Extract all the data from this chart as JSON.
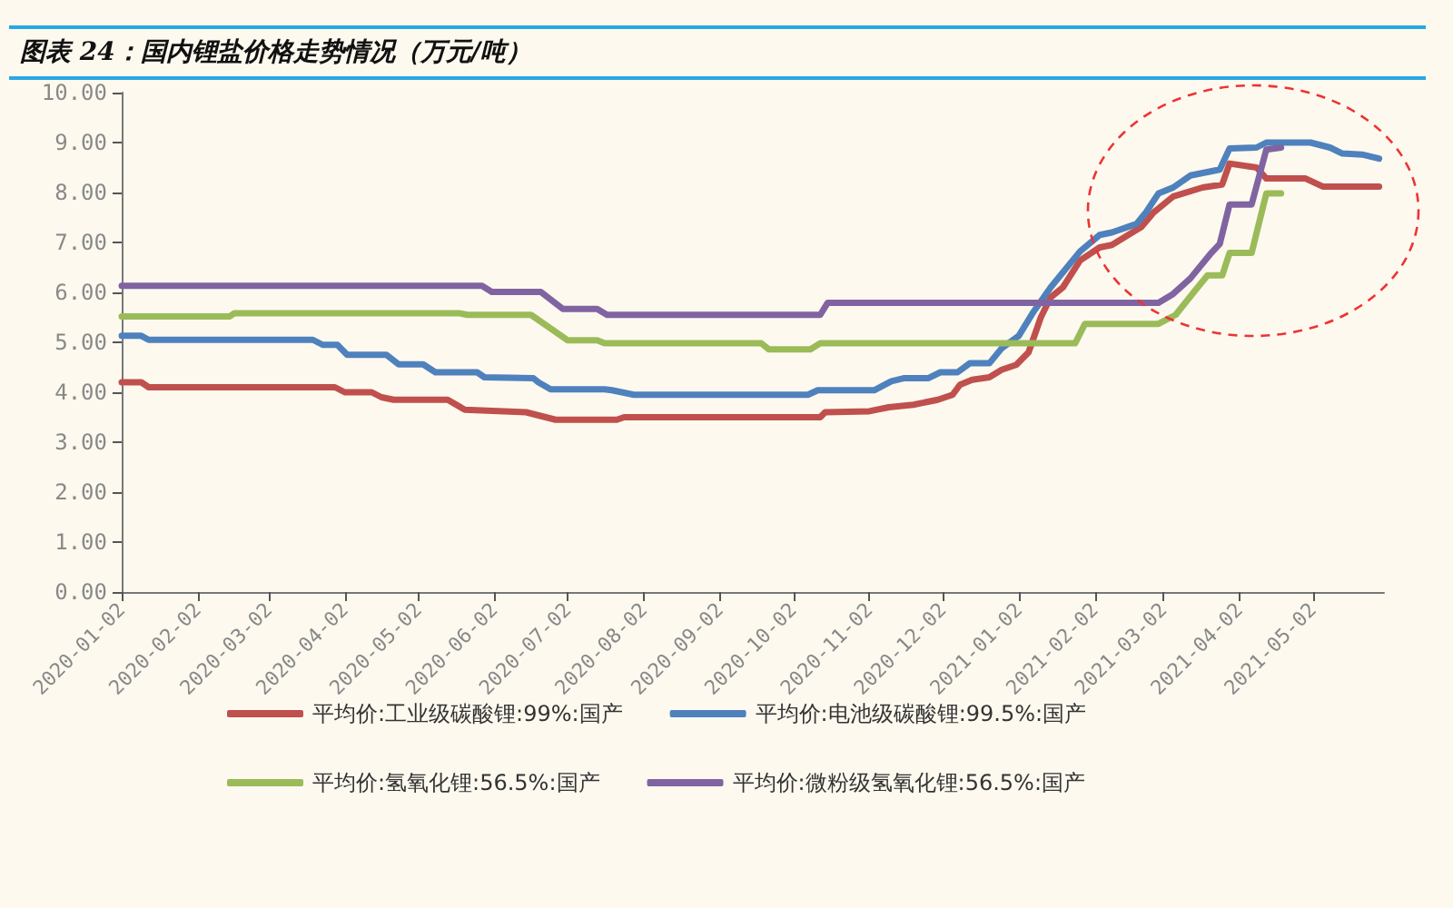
{
  "chart_data": {
    "type": "line",
    "title": "图表 24：国内锂盐价格走势情况（万元/吨）",
    "xlim": [
      "2020-01-02",
      "2021-05-31"
    ],
    "xticks": [
      "2020-01-02",
      "2020-02-02",
      "2020-03-02",
      "2020-04-02",
      "2020-05-02",
      "2020-06-02",
      "2020-07-02",
      "2020-08-02",
      "2020-09-02",
      "2020-10-02",
      "2020-11-02",
      "2020-12-02",
      "2021-01-02",
      "2021-02-02",
      "2021-03-02",
      "2021-04-02",
      "2021-05-02"
    ],
    "ylim": [
      0,
      10
    ],
    "yticks": [
      {
        "value": 0,
        "label": "0.00"
      },
      {
        "value": 1,
        "label": "1.00"
      },
      {
        "value": 2,
        "label": "2.00"
      },
      {
        "value": 3,
        "label": "3.00"
      },
      {
        "value": 4,
        "label": "4.00"
      },
      {
        "value": 5,
        "label": "5.00"
      },
      {
        "value": 6,
        "label": "6.00"
      },
      {
        "value": 7,
        "label": "7.00"
      },
      {
        "value": 8,
        "label": "8.00"
      },
      {
        "value": 9,
        "label": "9.00"
      },
      {
        "value": 10,
        "label": "10.00"
      }
    ],
    "grid": false,
    "legend": "bottom",
    "marker": "none",
    "line_style": "solid",
    "series": [
      {
        "name": "平均价:工业级碳酸锂:99%:国产",
        "color": "#c0504d",
        "x": [
          "2020-01-02",
          "2020-01-10",
          "2020-01-13",
          "2020-03-29",
          "2020-04-02",
          "2020-04-13",
          "2020-04-17",
          "2020-04-22",
          "2020-05-14",
          "2020-05-21",
          "2020-06-15",
          "2020-06-27",
          "2020-07-22",
          "2020-07-25",
          "2020-10-13",
          "2020-10-15",
          "2020-11-02",
          "2020-11-10",
          "2020-11-20",
          "2020-11-30",
          "2020-12-06",
          "2020-12-09",
          "2020-12-14",
          "2020-12-21",
          "2020-12-26",
          "2021-01-01",
          "2021-01-06",
          "2021-01-11",
          "2021-01-15",
          "2021-01-20",
          "2021-01-27",
          "2021-02-04",
          "2021-02-09",
          "2021-02-21",
          "2021-02-26",
          "2021-03-06",
          "2021-03-18",
          "2021-03-26",
          "2021-03-29",
          "2021-04-09",
          "2021-04-13",
          "2021-04-29",
          "2021-05-06",
          "2021-05-29"
        ],
        "values": [
          4.2,
          4.2,
          4.1,
          4.1,
          4.0,
          4.0,
          3.9,
          3.85,
          3.85,
          3.65,
          3.6,
          3.45,
          3.45,
          3.5,
          3.5,
          3.6,
          3.62,
          3.7,
          3.75,
          3.85,
          3.95,
          4.15,
          4.25,
          4.3,
          4.45,
          4.55,
          4.8,
          5.5,
          5.9,
          6.1,
          6.64,
          6.9,
          6.95,
          7.31,
          7.6,
          7.92,
          8.1,
          8.16,
          8.58,
          8.5,
          8.28,
          8.28,
          8.12,
          8.12
        ]
      },
      {
        "name": "平均价:电池级碳酸锂:99.5%:国产",
        "color": "#4f81bd",
        "x": [
          "2020-01-02",
          "2020-01-10",
          "2020-01-13",
          "2020-03-20",
          "2020-03-24",
          "2020-03-30",
          "2020-04-03",
          "2020-04-19",
          "2020-04-24",
          "2020-05-04",
          "2020-05-09",
          "2020-05-26",
          "2020-05-29",
          "2020-06-18",
          "2020-06-20",
          "2020-06-25",
          "2020-07-17",
          "2020-07-20",
          "2020-07-29",
          "2020-10-08",
          "2020-10-12",
          "2020-11-04",
          "2020-11-11",
          "2020-11-16",
          "2020-11-26",
          "2020-12-01",
          "2020-12-08",
          "2020-12-13",
          "2020-12-21",
          "2020-12-26",
          "2021-01-02",
          "2021-01-08",
          "2021-01-15",
          "2021-01-20",
          "2021-01-27",
          "2021-02-04",
          "2021-02-09",
          "2021-02-19",
          "2021-02-23",
          "2021-02-28",
          "2021-03-06",
          "2021-03-13",
          "2021-03-25",
          "2021-03-29",
          "2021-04-09",
          "2021-04-13",
          "2021-05-01",
          "2021-05-09",
          "2021-05-14",
          "2021-05-22",
          "2021-05-29"
        ],
        "values": [
          5.13,
          5.13,
          5.05,
          5.05,
          4.95,
          4.95,
          4.75,
          4.75,
          4.56,
          4.56,
          4.4,
          4.4,
          4.3,
          4.28,
          4.2,
          4.06,
          4.06,
          4.04,
          3.95,
          3.95,
          4.04,
          4.04,
          4.22,
          4.28,
          4.28,
          4.4,
          4.4,
          4.58,
          4.58,
          4.88,
          5.13,
          5.61,
          6.1,
          6.4,
          6.82,
          7.15,
          7.2,
          7.37,
          7.61,
          7.98,
          8.1,
          8.34,
          8.46,
          8.88,
          8.9,
          9.0,
          9.0,
          8.9,
          8.78,
          8.76,
          8.68
        ]
      },
      {
        "name": "平均价:氢氧化锂:56.5%:国产",
        "color": "#9bbb59",
        "x": [
          "2020-01-02",
          "2020-02-15",
          "2020-02-17",
          "2020-05-19",
          "2020-05-22",
          "2020-06-17",
          "2020-07-02",
          "2020-07-14",
          "2020-07-17",
          "2020-09-19",
          "2020-09-22",
          "2020-10-09",
          "2020-10-13",
          "2021-01-25",
          "2021-01-29",
          "2021-02-28",
          "2021-03-07",
          "2021-03-15",
          "2021-03-20",
          "2021-03-26",
          "2021-03-29",
          "2021-04-07",
          "2021-04-13",
          "2021-04-19"
        ],
        "values": [
          5.52,
          5.52,
          5.58,
          5.58,
          5.55,
          5.55,
          5.04,
          5.04,
          4.98,
          4.98,
          4.86,
          4.86,
          4.98,
          4.98,
          5.37,
          5.37,
          5.55,
          6.04,
          6.34,
          6.34,
          6.79,
          6.79,
          7.98,
          7.98
        ]
      },
      {
        "name": "平均价:微粉级氢氧化锂:56.5%:国产",
        "color": "#8064a2",
        "x": [
          "2020-01-02",
          "2020-05-28",
          "2020-06-01",
          "2020-06-21",
          "2020-06-30",
          "2020-07-14",
          "2020-07-18",
          "2020-10-13",
          "2020-10-16",
          "2021-02-28",
          "2021-03-06",
          "2021-03-13",
          "2021-03-21",
          "2021-03-25",
          "2021-03-29",
          "2021-04-07",
          "2021-04-13",
          "2021-04-19"
        ],
        "values": [
          6.13,
          6.13,
          6.01,
          6.01,
          5.67,
          5.67,
          5.55,
          5.55,
          5.79,
          5.79,
          5.97,
          6.28,
          6.76,
          6.97,
          7.76,
          7.76,
          8.86,
          8.9
        ]
      }
    ]
  }
}
